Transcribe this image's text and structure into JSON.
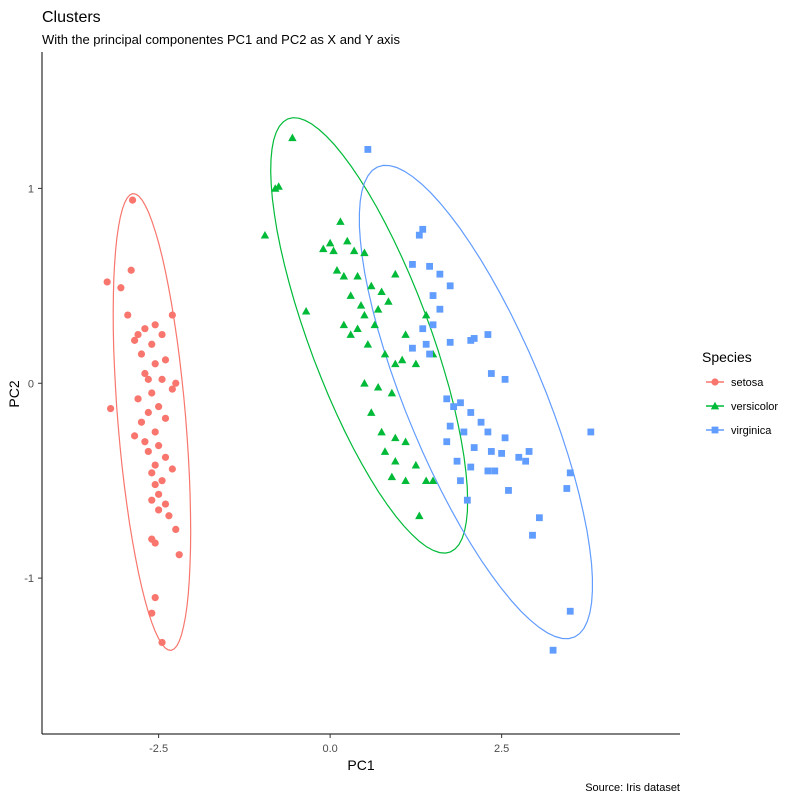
{
  "chart_data": {
    "type": "scatter",
    "title": "Clusters",
    "subtitle": "With the principal componentes PC1 and PC2 as X and Y axis",
    "caption": "Source: Iris dataset",
    "xlabel": "PC1",
    "ylabel": "PC2",
    "xlim": [
      -4.2,
      5.1
    ],
    "ylim": [
      -1.8,
      1.7
    ],
    "xticks": [
      -2.5,
      0.0,
      2.5
    ],
    "xtick_labels": [
      "-2.5",
      "0.0",
      "2.5"
    ],
    "yticks": [
      -1,
      0,
      1
    ],
    "ytick_labels": [
      "-1",
      "0",
      "1"
    ],
    "grid": false,
    "legend": {
      "title": "Species",
      "position": "right"
    },
    "series": [
      {
        "name": "setosa",
        "color": "#F8766D",
        "shape": "circle",
        "points": [
          [
            -2.88,
            0.94
          ],
          [
            -3.25,
            0.52
          ],
          [
            -2.9,
            0.58
          ],
          [
            -3.05,
            0.49
          ],
          [
            -3.2,
            -0.13
          ],
          [
            -2.95,
            0.35
          ],
          [
            -2.8,
            0.25
          ],
          [
            -2.7,
            0.28
          ],
          [
            -2.85,
            0.22
          ],
          [
            -2.6,
            0.2
          ],
          [
            -2.75,
            0.15
          ],
          [
            -2.55,
            0.1
          ],
          [
            -2.7,
            0.05
          ],
          [
            -2.45,
            0.02
          ],
          [
            -2.3,
            -0.03
          ],
          [
            -2.6,
            -0.05
          ],
          [
            -2.8,
            -0.08
          ],
          [
            -2.5,
            -0.12
          ],
          [
            -2.65,
            -0.15
          ],
          [
            -2.4,
            -0.18
          ],
          [
            -2.75,
            -0.2
          ],
          [
            -2.55,
            -0.25
          ],
          [
            -2.85,
            -0.27
          ],
          [
            -2.7,
            -0.3
          ],
          [
            -2.5,
            -0.32
          ],
          [
            -2.65,
            -0.35
          ],
          [
            -2.4,
            -0.38
          ],
          [
            -2.55,
            -0.42
          ],
          [
            -2.3,
            -0.44
          ],
          [
            -2.6,
            -0.46
          ],
          [
            -2.45,
            -0.5
          ],
          [
            -2.55,
            -0.52
          ],
          [
            -2.5,
            -0.57
          ],
          [
            -2.6,
            -0.6
          ],
          [
            -2.4,
            -0.62
          ],
          [
            -2.5,
            -0.65
          ],
          [
            -2.35,
            -0.68
          ],
          [
            -2.25,
            -0.75
          ],
          [
            -2.6,
            -0.8
          ],
          [
            -2.55,
            -0.82
          ],
          [
            -2.2,
            -0.88
          ],
          [
            -2.55,
            -1.1
          ],
          [
            -2.6,
            -1.18
          ],
          [
            -2.45,
            -1.33
          ],
          [
            -2.3,
            0.35
          ],
          [
            -2.45,
            0.25
          ],
          [
            -2.55,
            0.3
          ],
          [
            -2.4,
            0.12
          ],
          [
            -2.65,
            0.02
          ],
          [
            -2.25,
            0.0
          ]
        ]
      },
      {
        "name": "versicolor",
        "color": "#00BA38",
        "shape": "triangle",
        "points": [
          [
            -0.55,
            1.26
          ],
          [
            -0.75,
            1.01
          ],
          [
            -0.8,
            1.0
          ],
          [
            -0.95,
            0.76
          ],
          [
            0.15,
            0.83
          ],
          [
            0.25,
            0.73
          ],
          [
            -0.1,
            0.69
          ],
          [
            0.0,
            0.72
          ],
          [
            0.05,
            0.68
          ],
          [
            0.35,
            0.68
          ],
          [
            0.5,
            0.67
          ],
          [
            0.95,
            0.56
          ],
          [
            0.1,
            0.58
          ],
          [
            0.2,
            0.55
          ],
          [
            0.4,
            0.55
          ],
          [
            0.6,
            0.5
          ],
          [
            0.75,
            0.47
          ],
          [
            0.85,
            0.42
          ],
          [
            0.3,
            0.45
          ],
          [
            0.45,
            0.4
          ],
          [
            0.7,
            0.38
          ],
          [
            0.5,
            0.35
          ],
          [
            0.65,
            0.3
          ],
          [
            0.2,
            0.3
          ],
          [
            0.4,
            0.28
          ],
          [
            0.3,
            0.25
          ],
          [
            0.55,
            0.2
          ],
          [
            0.8,
            0.15
          ],
          [
            0.95,
            0.1
          ],
          [
            1.05,
            0.12
          ],
          [
            0.5,
            0.0
          ],
          [
            0.7,
            -0.02
          ],
          [
            0.9,
            -0.05
          ],
          [
            0.6,
            -0.15
          ],
          [
            0.75,
            -0.25
          ],
          [
            0.95,
            -0.28
          ],
          [
            1.1,
            -0.3
          ],
          [
            0.8,
            -0.35
          ],
          [
            0.95,
            -0.4
          ],
          [
            1.25,
            -0.42
          ],
          [
            0.9,
            -0.48
          ],
          [
            1.1,
            -0.5
          ],
          [
            1.4,
            -0.5
          ],
          [
            1.5,
            -0.5
          ],
          [
            1.3,
            -0.68
          ],
          [
            1.4,
            0.35
          ],
          [
            1.1,
            0.25
          ],
          [
            1.5,
            0.15
          ],
          [
            1.25,
            0.1
          ],
          [
            -0.35,
            0.37
          ]
        ]
      },
      {
        "name": "virginica",
        "color": "#619CFF",
        "shape": "square",
        "points": [
          [
            0.55,
            1.2
          ],
          [
            1.35,
            0.79
          ],
          [
            1.3,
            0.76
          ],
          [
            1.2,
            0.61
          ],
          [
            1.45,
            0.6
          ],
          [
            1.6,
            0.56
          ],
          [
            1.75,
            0.5
          ],
          [
            1.5,
            0.45
          ],
          [
            1.6,
            0.38
          ],
          [
            1.5,
            0.3
          ],
          [
            1.35,
            0.28
          ],
          [
            1.4,
            0.2
          ],
          [
            1.2,
            0.18
          ],
          [
            1.45,
            0.15
          ],
          [
            1.75,
            0.21
          ],
          [
            2.05,
            0.22
          ],
          [
            2.1,
            0.23
          ],
          [
            2.3,
            0.25
          ],
          [
            2.35,
            0.05
          ],
          [
            2.55,
            0.02
          ],
          [
            3.8,
            -0.25
          ],
          [
            1.7,
            -0.08
          ],
          [
            1.8,
            -0.12
          ],
          [
            1.9,
            -0.1
          ],
          [
            2.05,
            -0.15
          ],
          [
            2.2,
            -0.2
          ],
          [
            1.75,
            -0.22
          ],
          [
            1.95,
            -0.25
          ],
          [
            2.3,
            -0.25
          ],
          [
            2.55,
            -0.28
          ],
          [
            1.7,
            -0.3
          ],
          [
            2.1,
            -0.33
          ],
          [
            2.35,
            -0.35
          ],
          [
            2.5,
            -0.36
          ],
          [
            2.75,
            -0.38
          ],
          [
            2.9,
            -0.35
          ],
          [
            1.85,
            -0.4
          ],
          [
            2.05,
            -0.43
          ],
          [
            2.3,
            -0.45
          ],
          [
            2.85,
            -0.4
          ],
          [
            2.4,
            -0.45
          ],
          [
            3.5,
            -0.46
          ],
          [
            3.45,
            -0.54
          ],
          [
            2.6,
            -0.55
          ],
          [
            3.05,
            -0.69
          ],
          [
            2.95,
            -0.78
          ],
          [
            3.5,
            -1.17
          ],
          [
            3.25,
            -1.37
          ],
          [
            1.9,
            -0.5
          ],
          [
            2.0,
            -0.6
          ]
        ]
      }
    ]
  }
}
